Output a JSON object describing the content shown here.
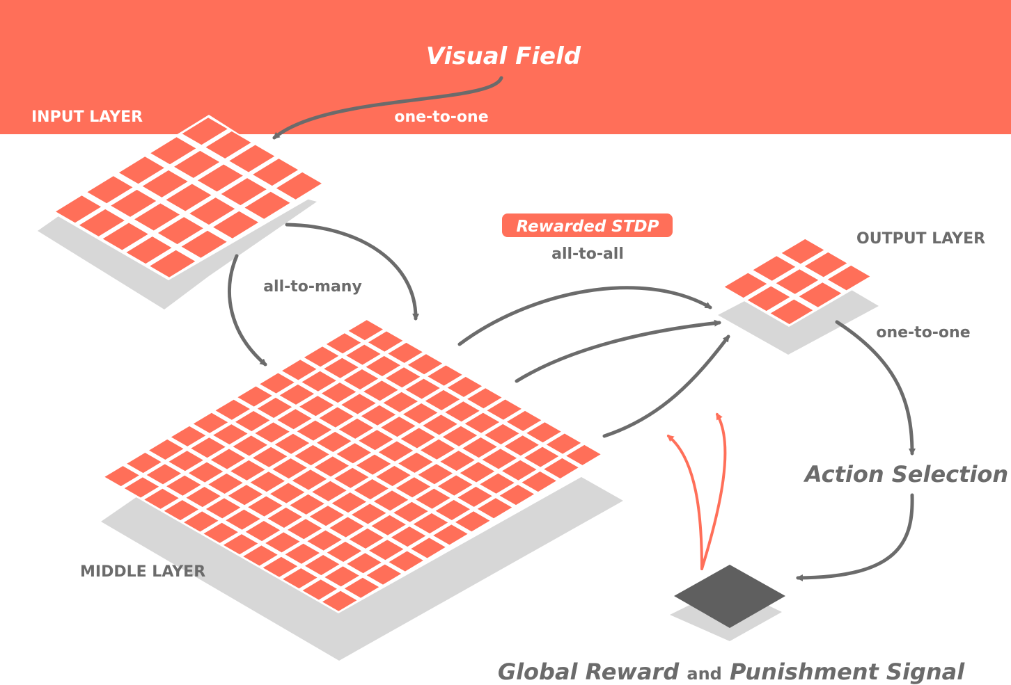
{
  "header": {
    "title": "Visual Field",
    "connection": "one-to-one"
  },
  "layers": {
    "input": {
      "label": "INPUT LAYER",
      "grid_n": 5
    },
    "middle": {
      "label": "MIDDLE LAYER",
      "grid_n": 12
    },
    "output": {
      "label": "OUTPUT LAYER",
      "grid_n": 3
    }
  },
  "connections": {
    "input_to_middle": "all-to-many",
    "middle_to_output": "all-to-all",
    "learning_rule": "Rewarded STDP",
    "output_to_action": "one-to-one"
  },
  "action": {
    "label": "Action Selection"
  },
  "reward": {
    "part1": "Global Reward",
    "part2": "and",
    "part3": "Punishment Signal"
  },
  "colors": {
    "accent": "#ff6f59",
    "shadow": "#d7d7d7",
    "arrow": "#6b6b6b",
    "reward_node": "#5f5f5f",
    "text": "#6b6b6b"
  }
}
